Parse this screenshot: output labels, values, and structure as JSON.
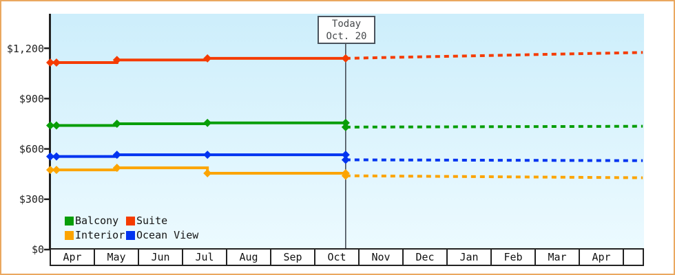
{
  "y_axis": {
    "labels": [
      "$1,200",
      "$900",
      "$600",
      "$300",
      "$0"
    ]
  },
  "x_axis": {
    "months": [
      "Apr",
      "May",
      "Jun",
      "Jul",
      "Aug",
      "Sep",
      "Oct",
      "Nov",
      "Dec",
      "Jan",
      "Feb",
      "Mar",
      "Apr"
    ]
  },
  "today_marker": {
    "line1": "Today",
    "line2": "Oct. 20"
  },
  "legend": {
    "items": [
      {
        "label": "Balcony",
        "color": "#089e08"
      },
      {
        "label": "Suite",
        "color": "#f53b00"
      },
      {
        "label": "Interior",
        "color": "#fca400"
      },
      {
        "label": "Ocean View",
        "color": "#0134f0"
      }
    ]
  },
  "colors": {
    "frame_border": "#eaa75f",
    "axis": "#222222",
    "today_line": "#444c55",
    "plot_bg_top": "#cdeefb",
    "plot_bg_bottom": "#ecfaff"
  },
  "chart_data": {
    "type": "line",
    "title": "",
    "x_unit": "months_since_first_april",
    "x_categories": [
      "Apr",
      "May",
      "Jun",
      "Jul",
      "Aug",
      "Sep",
      "Oct",
      "Nov",
      "Dec",
      "Jan",
      "Feb",
      "Mar",
      "Apr"
    ],
    "y_ticks": [
      0,
      300,
      600,
      900,
      1200
    ],
    "ylim": [
      0,
      1405
    ],
    "xlim_months": [
      0,
      13.42
    ],
    "grid": false,
    "legend_position": "inside-bottom-left",
    "today": {
      "x": 6.69,
      "label": "Today",
      "date": "Oct. 20"
    },
    "series": [
      {
        "name": "Suite",
        "color": "#f53b00",
        "actual": {
          "style": "solid",
          "x": [
            0,
            0.14,
            1.51,
            3.56,
            6.69
          ],
          "values": [
            1115,
            1115,
            1130,
            1140,
            1140
          ]
        },
        "forecast": {
          "style": "dashed",
          "x": [
            6.69,
            13.42
          ],
          "values": [
            1140,
            1175
          ]
        }
      },
      {
        "name": "Balcony",
        "color": "#089e08",
        "actual": {
          "style": "solid",
          "x": [
            0,
            0.14,
            1.51,
            3.56,
            6.69
          ],
          "values": [
            740,
            740,
            750,
            755,
            755
          ]
        },
        "forecast": {
          "style": "dashed",
          "x": [
            6.69,
            13.42
          ],
          "values": [
            730,
            735
          ]
        }
      },
      {
        "name": "Ocean View",
        "color": "#0134f0",
        "actual": {
          "style": "solid",
          "x": [
            0,
            0.14,
            1.51,
            3.56,
            6.69
          ],
          "values": [
            555,
            555,
            565,
            565,
            565
          ]
        },
        "forecast": {
          "style": "dashed",
          "x": [
            6.69,
            13.42
          ],
          "values": [
            535,
            530
          ]
        }
      },
      {
        "name": "Interior",
        "color": "#fca400",
        "actual": {
          "style": "solid",
          "x": [
            0,
            0.14,
            1.51,
            3.56,
            6.69
          ],
          "values": [
            475,
            475,
            487,
            455,
            455
          ]
        },
        "forecast": {
          "style": "dashed",
          "x": [
            6.69,
            13.42
          ],
          "values": [
            440,
            428
          ]
        }
      }
    ]
  }
}
